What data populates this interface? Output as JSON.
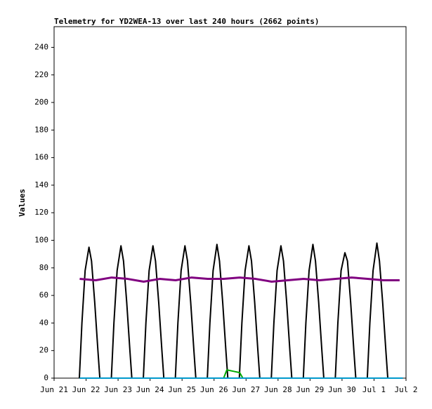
{
  "chart_data": {
    "type": "line",
    "title": "Telemetry for YD2WEA-13 over last 240 hours (2662 points)",
    "y_label": "Values",
    "xlim": [
      0,
      11
    ],
    "xticks": [
      {
        "value": 0,
        "label": "Jun 21"
      },
      {
        "value": 1,
        "label": "Jun 22"
      },
      {
        "value": 2,
        "label": "Jun 23"
      },
      {
        "value": 3,
        "label": "Jun 24"
      },
      {
        "value": 4,
        "label": "Jun 25"
      },
      {
        "value": 5,
        "label": "Jun 26"
      },
      {
        "value": 6,
        "label": "Jun 27"
      },
      {
        "value": 7,
        "label": "Jun 28"
      },
      {
        "value": 8,
        "label": "Jun 29"
      },
      {
        "value": 9,
        "label": "Jun 30"
      },
      {
        "value": 10,
        "label": "Jul 1"
      },
      {
        "value": 11,
        "label": "Jul 2"
      }
    ],
    "ylim": [
      0,
      255
    ],
    "yticks": [
      0,
      20,
      40,
      60,
      80,
      100,
      120,
      140,
      160,
      180,
      200,
      220,
      240
    ],
    "series": [
      {
        "color": "#000000",
        "width": 2,
        "x": [
          0.79,
          0.87,
          0.97,
          1.09,
          1.17,
          1.27,
          1.37,
          1.43,
          1.79,
          1.87,
          1.97,
          2.09,
          2.17,
          2.27,
          2.37,
          2.43,
          2.79,
          2.87,
          2.97,
          3.09,
          3.17,
          3.27,
          3.37,
          3.43,
          3.79,
          3.87,
          3.97,
          4.09,
          4.17,
          4.27,
          4.37,
          4.43,
          4.79,
          4.87,
          4.97,
          5.09,
          5.17,
          5.27,
          5.37,
          5.43,
          5.79,
          5.87,
          5.97,
          6.09,
          6.17,
          6.27,
          6.37,
          6.43,
          6.79,
          6.87,
          6.97,
          7.09,
          7.17,
          7.27,
          7.37,
          7.43,
          7.79,
          7.87,
          7.97,
          8.09,
          8.17,
          8.27,
          8.37,
          8.43,
          8.79,
          8.87,
          8.97,
          9.09,
          9.17,
          9.27,
          9.37,
          9.43,
          9.79,
          9.87,
          9.97,
          10.09,
          10.17,
          10.27,
          10.37,
          10.43
        ],
        "values": [
          0,
          40,
          78,
          95,
          85,
          55,
          20,
          0,
          0,
          40,
          78,
          96,
          85,
          55,
          20,
          0,
          0,
          40,
          78,
          96,
          85,
          55,
          20,
          0,
          0,
          40,
          78,
          96,
          85,
          55,
          20,
          0,
          0,
          40,
          78,
          97,
          85,
          55,
          20,
          0,
          0,
          40,
          78,
          96,
          85,
          55,
          20,
          0,
          0,
          40,
          78,
          96,
          85,
          55,
          20,
          0,
          0,
          40,
          78,
          97,
          85,
          55,
          20,
          0,
          0,
          40,
          78,
          91,
          85,
          55,
          20,
          0,
          0,
          40,
          78,
          98,
          85,
          55,
          20,
          0
        ]
      },
      {
        "color": "#800080",
        "width": 3,
        "x": [
          0.8,
          1.3,
          1.8,
          2.3,
          2.8,
          3.3,
          3.8,
          4.3,
          4.8,
          5.3,
          5.8,
          6.3,
          6.8,
          7.3,
          7.8,
          8.3,
          8.8,
          9.3,
          9.8,
          10.3,
          10.8
        ],
        "values": [
          72,
          71,
          73,
          72,
          70,
          72,
          71,
          73,
          72,
          72,
          73,
          72,
          70,
          71,
          72,
          71,
          72,
          73,
          72,
          71,
          71
        ]
      },
      {
        "color": "#00aa00",
        "width": 2,
        "x": [
          0.8,
          5.3,
          5.4,
          5.6,
          5.8,
          5.9,
          10.9
        ],
        "values": [
          0,
          0,
          6,
          5,
          4,
          0,
          0
        ]
      },
      {
        "color": "#0099cc",
        "width": 2,
        "x": [
          0.8,
          10.9
        ],
        "values": [
          0,
          0
        ]
      }
    ]
  }
}
